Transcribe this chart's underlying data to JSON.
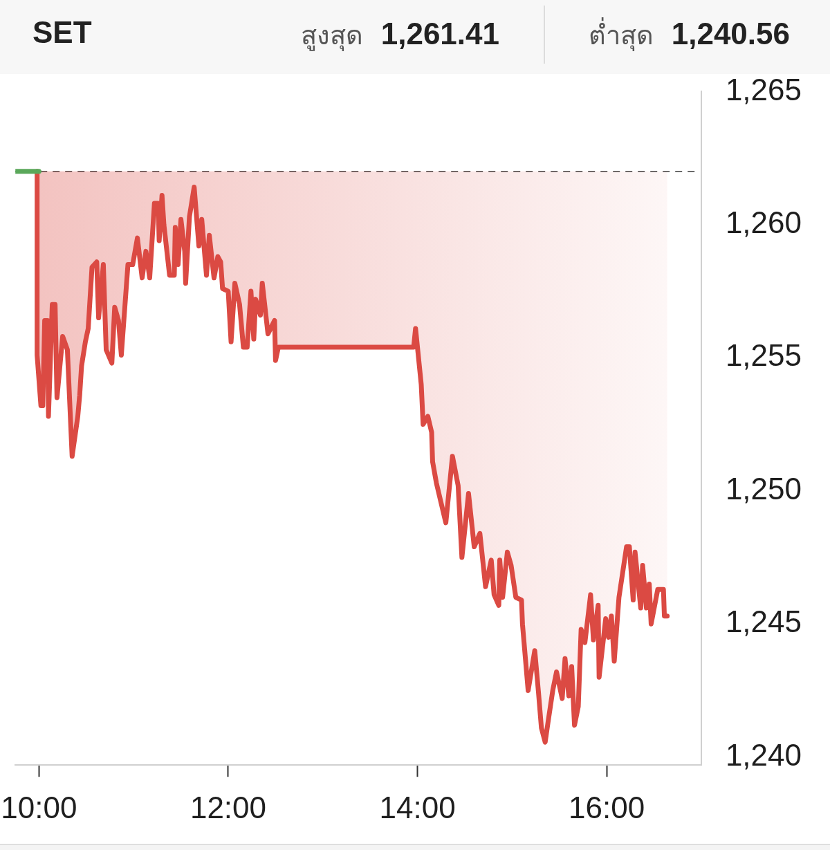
{
  "chart_data": {
    "type": "line",
    "title": "SET",
    "annotations": [
      "สูงสุด 1,261.41",
      "ต่ำสุด 1,240.56"
    ],
    "xlim": [
      9.75,
      17.0
    ],
    "xticks": [
      {
        "value": 10,
        "label": "10:00"
      },
      {
        "value": 12,
        "label": "12:00"
      },
      {
        "value": 14,
        "label": "14:00"
      },
      {
        "value": 16,
        "label": "16:00"
      }
    ],
    "ylim": [
      1239.7,
      1265
    ],
    "yticks": [
      {
        "value": 1240,
        "label": "1,240"
      },
      {
        "value": 1245,
        "label": "1,245"
      },
      {
        "value": 1250,
        "label": "1,250"
      },
      {
        "value": 1255,
        "label": "1,255"
      },
      {
        "value": 1260,
        "label": "1,260"
      },
      {
        "value": 1265,
        "label": "1,265"
      }
    ],
    "ref_lines": [
      {
        "axis": "y",
        "value": 1262.0,
        "color": "#555555",
        "line_style": "dashed"
      }
    ],
    "series": [
      {
        "type": "line",
        "color": "#5aa85a",
        "x": [
          9.75,
          10.0
        ],
        "values": [
          1262.0,
          1262.0
        ]
      },
      {
        "type": "line",
        "color": "#db4a43",
        "x": [
          9.98,
          9.98,
          10.02,
          10.04,
          10.06,
          10.09,
          10.1,
          10.14,
          10.17,
          10.19,
          10.25,
          10.3,
          10.35,
          10.41,
          10.43,
          10.45,
          10.49,
          10.52,
          10.56,
          10.61,
          10.63,
          10.68,
          10.71,
          10.77,
          10.8,
          10.84,
          10.87,
          10.94,
          10.99,
          11.04,
          11.09,
          11.13,
          11.17,
          11.22,
          11.26,
          11.27,
          11.3,
          11.32,
          11.38,
          11.43,
          11.44,
          11.47,
          11.5,
          11.54,
          11.55,
          11.59,
          11.64,
          11.69,
          11.72,
          11.77,
          11.8,
          11.85,
          11.89,
          11.92,
          11.94,
          12.0,
          12.03,
          12.07,
          12.12,
          12.16,
          12.2,
          12.24,
          12.27,
          12.29,
          12.34,
          12.36,
          12.42,
          12.49,
          12.5,
          12.53,
          13.96,
          13.98,
          14.04,
          14.06,
          14.11,
          14.15,
          14.16,
          14.2,
          14.3,
          14.37,
          14.43,
          14.47,
          14.54,
          14.6,
          14.66,
          14.72,
          14.78,
          14.81,
          14.86,
          14.87,
          14.9,
          14.95,
          14.99,
          15.04,
          15.1,
          15.11,
          15.17,
          15.24,
          15.28,
          15.31,
          15.35,
          15.38,
          15.43,
          15.47,
          15.53,
          15.56,
          15.6,
          15.63,
          15.66,
          15.7,
          15.73,
          15.77,
          15.83,
          15.86,
          15.91,
          15.92,
          15.99,
          16.02,
          16.05,
          16.08,
          16.13,
          16.21,
          16.24,
          16.28,
          16.3,
          16.36,
          16.38,
          16.42,
          16.45,
          16.47,
          16.54,
          16.6,
          16.61,
          16.64
        ],
        "values": [
          1262.0,
          1255.1,
          1253.2,
          1253.2,
          1256.4,
          1256.4,
          1252.8,
          1257.0,
          1257.0,
          1253.5,
          1255.8,
          1255.3,
          1251.3,
          1252.8,
          1253.6,
          1254.7,
          1255.6,
          1256.1,
          1258.4,
          1258.6,
          1256.5,
          1258.5,
          1255.3,
          1254.8,
          1256.9,
          1256.4,
          1255.1,
          1258.5,
          1258.5,
          1259.5,
          1258.0,
          1259.0,
          1258.0,
          1260.8,
          1260.8,
          1259.4,
          1261.1,
          1260.0,
          1258.1,
          1258.1,
          1259.9,
          1258.5,
          1260.2,
          1259.0,
          1257.8,
          1260.3,
          1261.41,
          1259.2,
          1260.2,
          1258.1,
          1259.6,
          1258.0,
          1258.8,
          1258.6,
          1257.6,
          1257.5,
          1255.6,
          1257.8,
          1257.0,
          1255.4,
          1255.4,
          1257.5,
          1255.7,
          1257.2,
          1256.6,
          1257.8,
          1255.9,
          1256.4,
          1254.9,
          1255.4,
          1255.4,
          1256.1,
          1254.0,
          1252.5,
          1252.8,
          1252.2,
          1251.1,
          1250.3,
          1248.8,
          1251.3,
          1250.2,
          1247.5,
          1249.9,
          1247.9,
          1248.4,
          1246.4,
          1247.4,
          1246.1,
          1245.7,
          1247.4,
          1246.0,
          1247.7,
          1247.2,
          1246.0,
          1245.9,
          1245.0,
          1242.5,
          1244.0,
          1242.4,
          1241.1,
          1240.56,
          1241.3,
          1242.5,
          1243.2,
          1242.2,
          1243.7,
          1242.3,
          1243.4,
          1241.2,
          1241.9,
          1244.8,
          1244.3,
          1246.1,
          1244.4,
          1245.7,
          1243.0,
          1245.2,
          1244.5,
          1245.3,
          1243.6,
          1246.0,
          1247.9,
          1247.9,
          1245.9,
          1247.7,
          1245.6,
          1247.2,
          1245.6,
          1246.5,
          1245.0,
          1246.3,
          1246.3,
          1245.3,
          1245.3
        ],
        "lower": [
          null,
          1255.1,
          1253.2,
          1253.2,
          1256.4,
          1256.4,
          1252.8,
          1257.0,
          1257.0,
          1253.5,
          1255.8,
          1255.3,
          1251.3,
          1252.8,
          1253.6,
          1254.7,
          1255.6,
          1256.1,
          1258.4,
          1258.6,
          1256.5,
          1258.5,
          1255.3,
          1254.8,
          1256.9,
          1256.4,
          1255.1,
          1258.5,
          1258.5,
          1259.5,
          1258.0,
          1259.0,
          1258.0,
          1260.8,
          1260.8,
          1259.4,
          1261.1,
          1260.0,
          1258.1,
          1258.1,
          1259.9,
          1258.5,
          1260.2,
          1259.0,
          1257.8,
          1260.3,
          1261.41,
          1259.2,
          1260.2,
          1258.1,
          1259.6,
          1258.0,
          1258.8,
          1258.6,
          1257.6,
          1257.5,
          1255.6,
          1257.8,
          1257.0,
          1255.4,
          1255.4,
          1257.5,
          1255.7,
          1257.2,
          1256.6,
          1257.8,
          1255.9,
          1256.4,
          1254.9,
          1255.4,
          1255.4,
          1256.1,
          1254.0,
          1252.5,
          1252.8,
          1252.2,
          1251.1,
          1250.3,
          1248.8,
          1251.3,
          1250.2,
          1247.5,
          1249.9,
          1247.9,
          1248.4,
          1246.4,
          1247.4,
          1246.1,
          1245.7,
          1247.4,
          1246.0,
          1247.7,
          1247.2,
          1246.0,
          1245.9,
          1245.0,
          1242.5,
          1244.0,
          1242.4,
          1241.1,
          1240.56,
          1241.3,
          1242.5,
          1243.2,
          1242.2,
          1243.7,
          1242.3,
          1243.4,
          1241.2,
          1241.9,
          1244.8,
          1244.3,
          1246.1,
          1244.4,
          1245.7,
          1243.0,
          1245.2,
          1244.5,
          1245.3,
          1243.6,
          1246.0,
          1247.9,
          1247.9,
          1245.9,
          1247.7,
          1245.6,
          1247.2,
          1245.6,
          1246.5,
          1245.0,
          1246.3,
          1246.3,
          1245.3,
          1245.3
        ],
        "upper": [
          null,
          1262.0,
          1262.0,
          1262.0,
          1262.0,
          1262.0,
          1262.0,
          1262.0,
          1262.0,
          1262.0,
          1262.0,
          1262.0,
          1262.0,
          1262.0,
          1262.0,
          1262.0,
          1262.0,
          1262.0,
          1262.0,
          1262.0,
          1262.0,
          1262.0,
          1262.0,
          1262.0,
          1262.0,
          1262.0,
          1262.0,
          1262.0,
          1262.0,
          1262.0,
          1262.0,
          1262.0,
          1262.0,
          1262.0,
          1262.0,
          1262.0,
          1262.0,
          1262.0,
          1262.0,
          1262.0,
          1262.0,
          1262.0,
          1262.0,
          1262.0,
          1262.0,
          1262.0,
          1262.0,
          1262.0,
          1262.0,
          1262.0,
          1262.0,
          1262.0,
          1262.0,
          1262.0,
          1262.0,
          1262.0,
          1262.0,
          1262.0,
          1262.0,
          1262.0,
          1262.0,
          1262.0,
          1262.0,
          1262.0,
          1262.0,
          1262.0,
          1262.0,
          1262.0,
          1262.0,
          1262.0,
          1262.0,
          1262.0,
          1262.0,
          1262.0,
          1262.0,
          1262.0,
          1262.0,
          1262.0,
          1262.0,
          1262.0,
          1262.0,
          1262.0,
          1262.0,
          1262.0,
          1262.0,
          1262.0,
          1262.0,
          1262.0,
          1262.0,
          1262.0,
          1262.0,
          1262.0,
          1262.0,
          1262.0,
          1262.0,
          1262.0,
          1262.0,
          1262.0,
          1262.0,
          1262.0,
          1262.0,
          1262.0,
          1262.0,
          1262.0,
          1262.0,
          1262.0,
          1262.0,
          1262.0,
          1262.0,
          1262.0,
          1262.0,
          1262.0,
          1262.0,
          1262.0,
          1262.0,
          1262.0,
          1262.0,
          1262.0,
          1262.0,
          1262.0,
          1262.0,
          1262.0,
          1262.0,
          1262.0,
          1262.0,
          1262.0,
          1262.0,
          1262.0,
          1262.0,
          1262.0,
          1262.0,
          1262.0,
          1262.0,
          1262.0
        ]
      }
    ]
  }
}
